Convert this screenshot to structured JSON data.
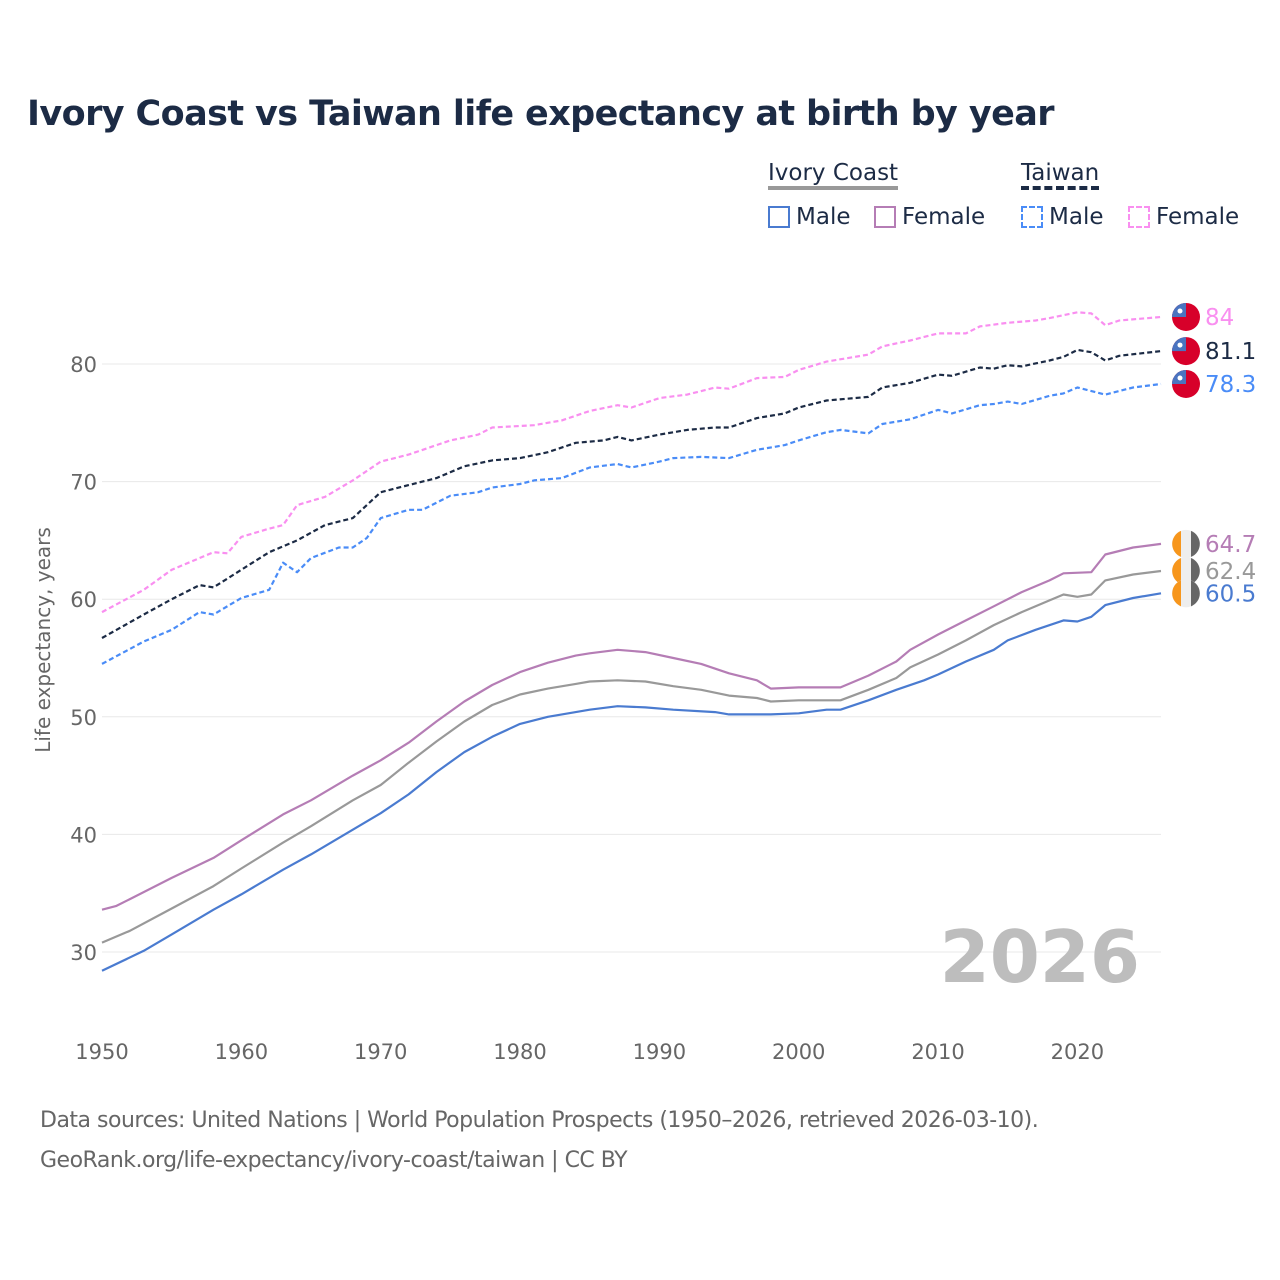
{
  "chart_data": {
    "type": "line",
    "title": "Ivory Coast vs Taiwan life expectancy at birth by year",
    "xlabel": "",
    "ylabel": "Life expectancy, years",
    "xlim": [
      1950,
      2026
    ],
    "ylim": [
      25,
      87
    ],
    "x_ticks": [
      1950,
      1960,
      1970,
      1980,
      1990,
      2000,
      2010,
      2020
    ],
    "y_ticks": [
      30,
      40,
      50,
      60,
      70,
      80
    ],
    "grid": true,
    "watermark_year": "2026",
    "legend": {
      "placement": "top-right",
      "groups": [
        {
          "title": "Ivory Coast",
          "items": [
            "Male",
            "Female"
          ]
        },
        {
          "title": "Taiwan",
          "items": [
            "Male",
            "Female"
          ]
        }
      ]
    },
    "series": [
      {
        "name": "Taiwan Female",
        "country": "Taiwan",
        "color": "#f98ff0",
        "dashed": true,
        "end_label": "84",
        "points": [
          [
            1950,
            58.9
          ],
          [
            1953,
            60.8
          ],
          [
            1955,
            62.5
          ],
          [
            1958,
            64
          ],
          [
            1959,
            63.9
          ],
          [
            1960,
            65.3
          ],
          [
            1962,
            66
          ],
          [
            1963,
            66.3
          ],
          [
            1964,
            68
          ],
          [
            1966,
            68.7
          ],
          [
            1968,
            70.1
          ],
          [
            1970,
            71.7
          ],
          [
            1972,
            72.3
          ],
          [
            1975,
            73.5
          ],
          [
            1977,
            74
          ],
          [
            1978,
            74.6
          ],
          [
            1981,
            74.8
          ],
          [
            1983,
            75.2
          ],
          [
            1985,
            76
          ],
          [
            1987,
            76.5
          ],
          [
            1988,
            76.3
          ],
          [
            1990,
            77.1
          ],
          [
            1992,
            77.4
          ],
          [
            1994,
            78
          ],
          [
            1995,
            77.9
          ],
          [
            1997,
            78.8
          ],
          [
            1999,
            78.9
          ],
          [
            2000,
            79.5
          ],
          [
            2002,
            80.2
          ],
          [
            2005,
            80.8
          ],
          [
            2006,
            81.5
          ],
          [
            2008,
            82
          ],
          [
            2010,
            82.6
          ],
          [
            2012,
            82.6
          ],
          [
            2013,
            83.2
          ],
          [
            2015,
            83.5
          ],
          [
            2017,
            83.7
          ],
          [
            2018,
            83.9
          ],
          [
            2020,
            84.4
          ],
          [
            2021,
            84.3
          ],
          [
            2022,
            83.3
          ],
          [
            2023,
            83.7
          ],
          [
            2026,
            84
          ]
        ]
      },
      {
        "name": "Taiwan",
        "country": "Taiwan",
        "color": "#1c2b45",
        "dashed": true,
        "end_label": "81.1",
        "points": [
          [
            1950,
            56.7
          ],
          [
            1953,
            58.7
          ],
          [
            1955,
            60
          ],
          [
            1957,
            61.2
          ],
          [
            1958,
            61
          ],
          [
            1960,
            62.5
          ],
          [
            1962,
            64
          ],
          [
            1964,
            65
          ],
          [
            1966,
            66.3
          ],
          [
            1968,
            66.9
          ],
          [
            1970,
            69.1
          ],
          [
            1972,
            69.7
          ],
          [
            1974,
            70.3
          ],
          [
            1976,
            71.3
          ],
          [
            1978,
            71.8
          ],
          [
            1980,
            72
          ],
          [
            1982,
            72.5
          ],
          [
            1984,
            73.3
          ],
          [
            1986,
            73.5
          ],
          [
            1987,
            73.8
          ],
          [
            1988,
            73.5
          ],
          [
            1990,
            74
          ],
          [
            1992,
            74.4
          ],
          [
            1994,
            74.6
          ],
          [
            1995,
            74.6
          ],
          [
            1997,
            75.4
          ],
          [
            1999,
            75.8
          ],
          [
            2000,
            76.3
          ],
          [
            2002,
            76.9
          ],
          [
            2005,
            77.2
          ],
          [
            2006,
            78
          ],
          [
            2008,
            78.4
          ],
          [
            2010,
            79.1
          ],
          [
            2011,
            79
          ],
          [
            2013,
            79.7
          ],
          [
            2014,
            79.6
          ],
          [
            2015,
            79.9
          ],
          [
            2016,
            79.8
          ],
          [
            2018,
            80.3
          ],
          [
            2019,
            80.6
          ],
          [
            2020,
            81.2
          ],
          [
            2021,
            81
          ],
          [
            2022,
            80.3
          ],
          [
            2023,
            80.7
          ],
          [
            2026,
            81.1
          ]
        ]
      },
      {
        "name": "Taiwan Male",
        "country": "Taiwan",
        "color": "#4a8cf7",
        "dashed": true,
        "end_label": "78.3",
        "points": [
          [
            1950,
            54.5
          ],
          [
            1953,
            56.4
          ],
          [
            1955,
            57.4
          ],
          [
            1957,
            58.9
          ],
          [
            1958,
            58.7
          ],
          [
            1960,
            60.1
          ],
          [
            1962,
            60.8
          ],
          [
            1963,
            63.1
          ],
          [
            1964,
            62.3
          ],
          [
            1965,
            63.5
          ],
          [
            1967,
            64.4
          ],
          [
            1968,
            64.4
          ],
          [
            1969,
            65.2
          ],
          [
            1970,
            66.9
          ],
          [
            1972,
            67.6
          ],
          [
            1973,
            67.6
          ],
          [
            1975,
            68.8
          ],
          [
            1977,
            69.1
          ],
          [
            1978,
            69.5
          ],
          [
            1980,
            69.8
          ],
          [
            1981,
            70.1
          ],
          [
            1983,
            70.3
          ],
          [
            1985,
            71.2
          ],
          [
            1987,
            71.5
          ],
          [
            1988,
            71.2
          ],
          [
            1990,
            71.7
          ],
          [
            1991,
            72
          ],
          [
            1993,
            72.1
          ],
          [
            1995,
            72
          ],
          [
            1997,
            72.7
          ],
          [
            1999,
            73.1
          ],
          [
            2000,
            73.5
          ],
          [
            2002,
            74.2
          ],
          [
            2003,
            74.4
          ],
          [
            2005,
            74.1
          ],
          [
            2006,
            74.9
          ],
          [
            2008,
            75.3
          ],
          [
            2010,
            76.1
          ],
          [
            2011,
            75.8
          ],
          [
            2013,
            76.5
          ],
          [
            2014,
            76.6
          ],
          [
            2015,
            76.8
          ],
          [
            2016,
            76.6
          ],
          [
            2018,
            77.3
          ],
          [
            2019,
            77.5
          ],
          [
            2020,
            78
          ],
          [
            2022,
            77.4
          ],
          [
            2024,
            78
          ],
          [
            2026,
            78.3
          ]
        ]
      },
      {
        "name": "Ivory Coast Female",
        "country": "Ivory Coast",
        "color": "#b57db5",
        "dashed": false,
        "end_label": "64.7",
        "points": [
          [
            1950,
            33.6
          ],
          [
            1951,
            33.9
          ],
          [
            1952,
            34.5
          ],
          [
            1955,
            36.3
          ],
          [
            1958,
            38
          ],
          [
            1960,
            39.5
          ],
          [
            1963,
            41.7
          ],
          [
            1965,
            42.9
          ],
          [
            1968,
            45
          ],
          [
            1970,
            46.3
          ],
          [
            1972,
            47.8
          ],
          [
            1974,
            49.6
          ],
          [
            1976,
            51.3
          ],
          [
            1978,
            52.7
          ],
          [
            1980,
            53.8
          ],
          [
            1982,
            54.6
          ],
          [
            1984,
            55.2
          ],
          [
            1985,
            55.4
          ],
          [
            1987,
            55.7
          ],
          [
            1989,
            55.5
          ],
          [
            1991,
            55
          ],
          [
            1993,
            54.5
          ],
          [
            1995,
            53.7
          ],
          [
            1997,
            53.1
          ],
          [
            1998,
            52.4
          ],
          [
            2000,
            52.5
          ],
          [
            2003,
            52.5
          ],
          [
            2005,
            53.5
          ],
          [
            2007,
            54.7
          ],
          [
            2008,
            55.7
          ],
          [
            2010,
            57
          ],
          [
            2012,
            58.2
          ],
          [
            2014,
            59.4
          ],
          [
            2016,
            60.6
          ],
          [
            2018,
            61.6
          ],
          [
            2019,
            62.2
          ],
          [
            2021,
            62.3
          ],
          [
            2022,
            63.8
          ],
          [
            2024,
            64.4
          ],
          [
            2026,
            64.7
          ]
        ]
      },
      {
        "name": "Ivory Coast",
        "country": "Ivory Coast",
        "color": "#999999",
        "dashed": false,
        "end_label": "62.4",
        "points": [
          [
            1950,
            30.8
          ],
          [
            1952,
            31.8
          ],
          [
            1955,
            33.7
          ],
          [
            1958,
            35.6
          ],
          [
            1960,
            37.1
          ],
          [
            1963,
            39.3
          ],
          [
            1965,
            40.7
          ],
          [
            1968,
            42.9
          ],
          [
            1970,
            44.2
          ],
          [
            1972,
            46.1
          ],
          [
            1974,
            47.9
          ],
          [
            1976,
            49.6
          ],
          [
            1978,
            51
          ],
          [
            1980,
            51.9
          ],
          [
            1982,
            52.4
          ],
          [
            1984,
            52.8
          ],
          [
            1985,
            53
          ],
          [
            1987,
            53.1
          ],
          [
            1989,
            53
          ],
          [
            1991,
            52.6
          ],
          [
            1993,
            52.3
          ],
          [
            1995,
            51.8
          ],
          [
            1997,
            51.6
          ],
          [
            1998,
            51.3
          ],
          [
            2000,
            51.4
          ],
          [
            2003,
            51.4
          ],
          [
            2005,
            52.3
          ],
          [
            2007,
            53.3
          ],
          [
            2008,
            54.2
          ],
          [
            2010,
            55.3
          ],
          [
            2012,
            56.5
          ],
          [
            2014,
            57.8
          ],
          [
            2016,
            58.9
          ],
          [
            2018,
            59.9
          ],
          [
            2019,
            60.4
          ],
          [
            2020,
            60.2
          ],
          [
            2021,
            60.4
          ],
          [
            2022,
            61.6
          ],
          [
            2024,
            62.1
          ],
          [
            2026,
            62.4
          ]
        ]
      },
      {
        "name": "Ivory Coast Male",
        "country": "Ivory Coast",
        "color": "#4a7bd0",
        "dashed": false,
        "end_label": "60.5",
        "points": [
          [
            1950,
            28.4
          ],
          [
            1953,
            30.1
          ],
          [
            1955,
            31.5
          ],
          [
            1958,
            33.6
          ],
          [
            1960,
            34.9
          ],
          [
            1963,
            37
          ],
          [
            1965,
            38.3
          ],
          [
            1968,
            40.4
          ],
          [
            1970,
            41.8
          ],
          [
            1972,
            43.4
          ],
          [
            1974,
            45.3
          ],
          [
            1976,
            47
          ],
          [
            1978,
            48.3
          ],
          [
            1980,
            49.4
          ],
          [
            1982,
            50
          ],
          [
            1984,
            50.4
          ],
          [
            1985,
            50.6
          ],
          [
            1987,
            50.9
          ],
          [
            1989,
            50.8
          ],
          [
            1991,
            50.6
          ],
          [
            1994,
            50.4
          ],
          [
            1995,
            50.2
          ],
          [
            1998,
            50.2
          ],
          [
            2000,
            50.3
          ],
          [
            2002,
            50.6
          ],
          [
            2003,
            50.6
          ],
          [
            2005,
            51.4
          ],
          [
            2007,
            52.3
          ],
          [
            2009,
            53.1
          ],
          [
            2010,
            53.6
          ],
          [
            2012,
            54.7
          ],
          [
            2014,
            55.7
          ],
          [
            2015,
            56.5
          ],
          [
            2017,
            57.4
          ],
          [
            2019,
            58.2
          ],
          [
            2020,
            58.1
          ],
          [
            2021,
            58.5
          ],
          [
            2022,
            59.5
          ],
          [
            2024,
            60.1
          ],
          [
            2026,
            60.5
          ]
        ]
      }
    ]
  },
  "footer": {
    "line1": "Data sources: United Nations | World Population Prospects (1950–2026, retrieved 2026-03-10).",
    "line2": "GeoRank.org/life-expectancy/ivory-coast/taiwan | CC BY"
  },
  "colors": {
    "title": "#1c2b45",
    "axis_text": "#666666",
    "grid": "#e8e8e8",
    "watermark": "#bdbdbd"
  }
}
